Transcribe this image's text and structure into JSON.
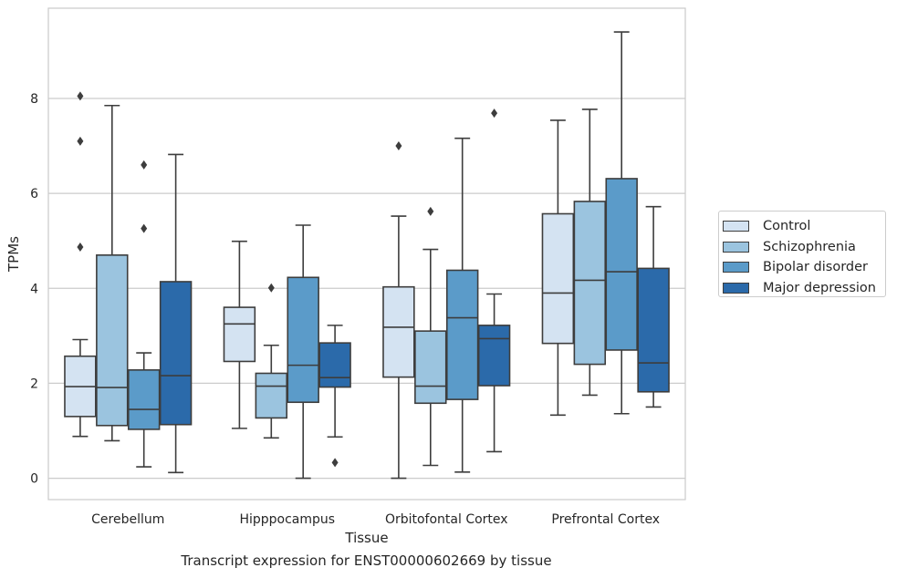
{
  "caption": "Transcript expression for ENST00000602669 by tissue",
  "chart_data": {
    "type": "box",
    "xlabel": "Tissue",
    "ylabel": "TPMs",
    "ylim": [
      -0.45,
      9.9
    ],
    "yticks": [
      0,
      2,
      4,
      6,
      8
    ],
    "grid": "horizontal",
    "legend_position": "right",
    "categories": [
      "Cerebellum",
      "Hipppocampus",
      "Orbitofontal Cortex",
      "Prefrontal Cortex"
    ],
    "series": [
      {
        "name": "Control",
        "color": "#d4e3f2",
        "boxes": [
          {
            "whisker_low": 0.88,
            "q1": 1.3,
            "median": 1.93,
            "q3": 2.57,
            "whisker_high": 2.92,
            "outliers": [
              4.87,
              7.1,
              8.05
            ]
          },
          {
            "whisker_low": 1.05,
            "q1": 2.46,
            "median": 3.25,
            "q3": 3.6,
            "whisker_high": 4.99,
            "outliers": []
          },
          {
            "whisker_low": 0.0,
            "q1": 2.13,
            "median": 3.18,
            "q3": 4.03,
            "whisker_high": 5.52,
            "outliers": [
              7.0
            ]
          },
          {
            "whisker_low": 1.33,
            "q1": 2.84,
            "median": 3.9,
            "q3": 5.57,
            "whisker_high": 7.54,
            "outliers": []
          }
        ]
      },
      {
        "name": "Schizophrenia",
        "color": "#9bc4df",
        "boxes": [
          {
            "whisker_low": 0.79,
            "q1": 1.11,
            "median": 1.91,
            "q3": 4.7,
            "whisker_high": 7.85,
            "outliers": []
          },
          {
            "whisker_low": 0.85,
            "q1": 1.27,
            "median": 1.94,
            "q3": 2.21,
            "whisker_high": 2.8,
            "outliers": [
              4.01
            ]
          },
          {
            "whisker_low": 0.27,
            "q1": 1.58,
            "median": 1.94,
            "q3": 3.1,
            "whisker_high": 4.82,
            "outliers": [
              5.62
            ]
          },
          {
            "whisker_low": 1.75,
            "q1": 2.4,
            "median": 4.17,
            "q3": 5.83,
            "whisker_high": 7.77,
            "outliers": []
          }
        ]
      },
      {
        "name": "Bipolar disorder",
        "color": "#5b9bc9",
        "boxes": [
          {
            "whisker_low": 0.24,
            "q1": 1.03,
            "median": 1.45,
            "q3": 2.28,
            "whisker_high": 2.64,
            "outliers": [
              5.26,
              6.6
            ]
          },
          {
            "whisker_low": 0.0,
            "q1": 1.6,
            "median": 2.38,
            "q3": 4.23,
            "whisker_high": 5.33,
            "outliers": []
          },
          {
            "whisker_low": 0.13,
            "q1": 1.66,
            "median": 3.38,
            "q3": 4.38,
            "whisker_high": 7.16,
            "outliers": []
          },
          {
            "whisker_low": 1.36,
            "q1": 2.7,
            "median": 4.35,
            "q3": 6.31,
            "whisker_high": 9.4,
            "outliers": []
          }
        ]
      },
      {
        "name": "Major depression",
        "color": "#2b6aaa",
        "boxes": [
          {
            "whisker_low": 0.12,
            "q1": 1.13,
            "median": 2.16,
            "q3": 4.14,
            "whisker_high": 6.82,
            "outliers": []
          },
          {
            "whisker_low": 0.87,
            "q1": 1.92,
            "median": 2.12,
            "q3": 2.85,
            "whisker_high": 3.22,
            "outliers": [
              0.33
            ]
          },
          {
            "whisker_low": 0.56,
            "q1": 1.95,
            "median": 2.94,
            "q3": 3.22,
            "whisker_high": 3.88,
            "outliers": [
              7.69
            ]
          },
          {
            "whisker_low": 1.5,
            "q1": 1.82,
            "median": 2.43,
            "q3": 4.42,
            "whisker_high": 5.72,
            "outliers": []
          }
        ]
      }
    ]
  }
}
